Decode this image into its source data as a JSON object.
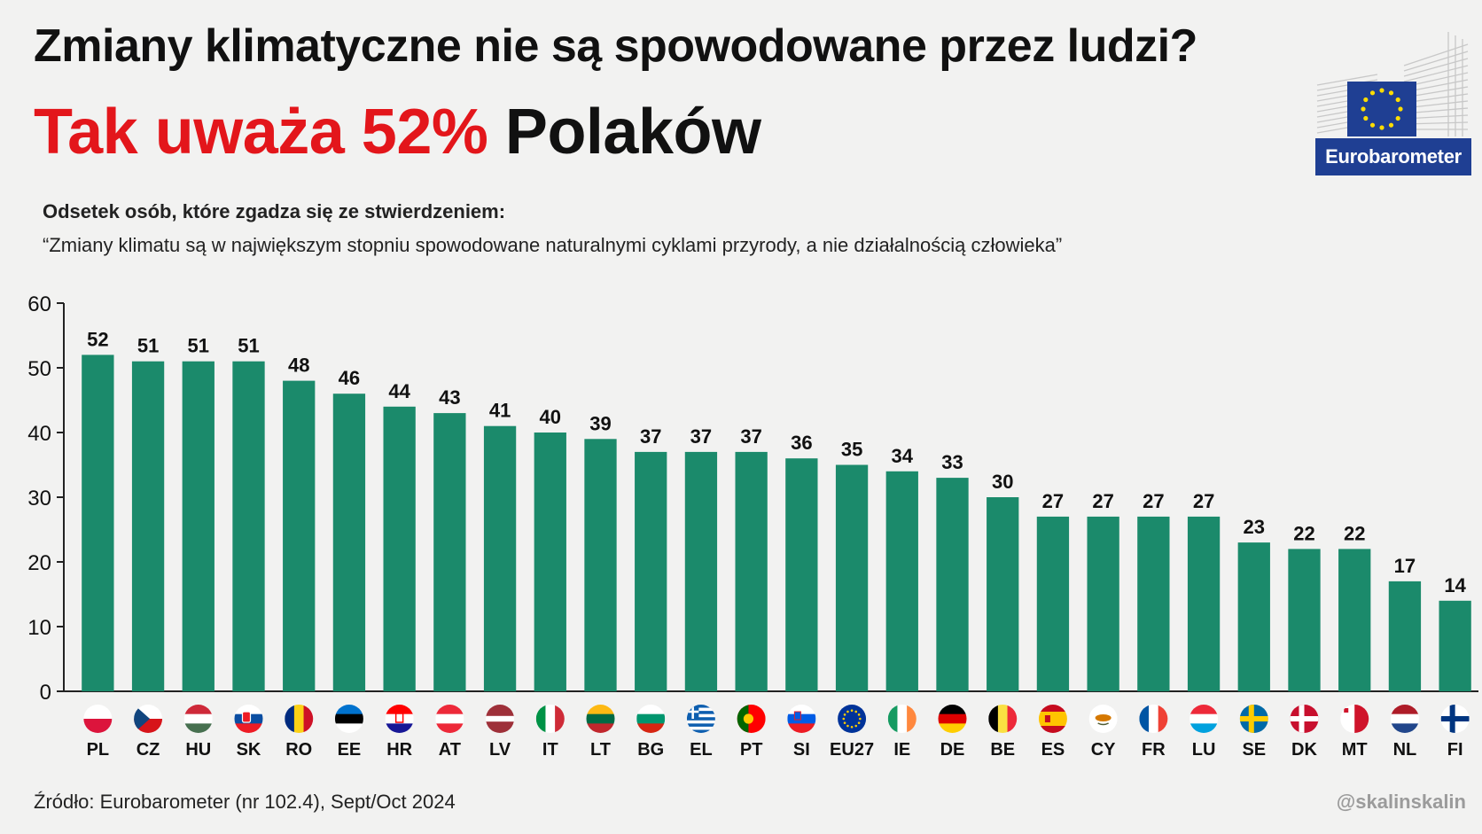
{
  "title_line1": "Zmiany klimatyczne nie są spowodowane przez ludzi?",
  "title_line2_red": "Tak uważa 52%",
  "title_line2_black": "Polaków",
  "subtitle": "Odsetek osób, które zgadza się ze stwierdzeniem:",
  "statement": "“Zmiany klimatu są w największym stopniu spowodowane naturalnymi cyklami przyrody, a nie działalnością człowieka”",
  "logo_text": "Eurobarometer",
  "source": "Źródło: Eurobarometer (nr 102.4), Sept/Oct 2024",
  "handle": "@skalinskalin",
  "colors": {
    "bar": "#1b8a6b",
    "accent_red": "#e3161b",
    "logo_blue": "#1f3f93"
  },
  "chart_data": {
    "type": "bar",
    "categories": [
      "PL",
      "CZ",
      "HU",
      "SK",
      "RO",
      "EE",
      "HR",
      "AT",
      "LV",
      "IT",
      "LT",
      "BG",
      "EL",
      "PT",
      "SI",
      "EU27",
      "IE",
      "DE",
      "BE",
      "ES",
      "CY",
      "FR",
      "LU",
      "SE",
      "DK",
      "MT",
      "NL",
      "FI"
    ],
    "values": [
      52,
      51,
      51,
      51,
      48,
      46,
      44,
      43,
      41,
      40,
      39,
      37,
      37,
      37,
      36,
      35,
      34,
      33,
      30,
      27,
      27,
      27,
      27,
      23,
      22,
      22,
      17,
      14
    ],
    "ylim": [
      0,
      60
    ],
    "yticks": [
      0,
      10,
      20,
      30,
      40,
      50,
      60
    ],
    "flags": [
      "poland-flag-icon",
      "czechia-flag-icon",
      "hungary-flag-icon",
      "slovakia-flag-icon",
      "romania-flag-icon",
      "estonia-flag-icon",
      "croatia-flag-icon",
      "austria-flag-icon",
      "latvia-flag-icon",
      "italy-flag-icon",
      "lithuania-flag-icon",
      "bulgaria-flag-icon",
      "greece-flag-icon",
      "portugal-flag-icon",
      "slovenia-flag-icon",
      "eu-flag-icon",
      "ireland-flag-icon",
      "germany-flag-icon",
      "belgium-flag-icon",
      "spain-flag-icon",
      "cyprus-flag-icon",
      "france-flag-icon",
      "luxembourg-flag-icon",
      "sweden-flag-icon",
      "denmark-flag-icon",
      "malta-flag-icon",
      "netherlands-flag-icon",
      "finland-flag-icon"
    ]
  }
}
